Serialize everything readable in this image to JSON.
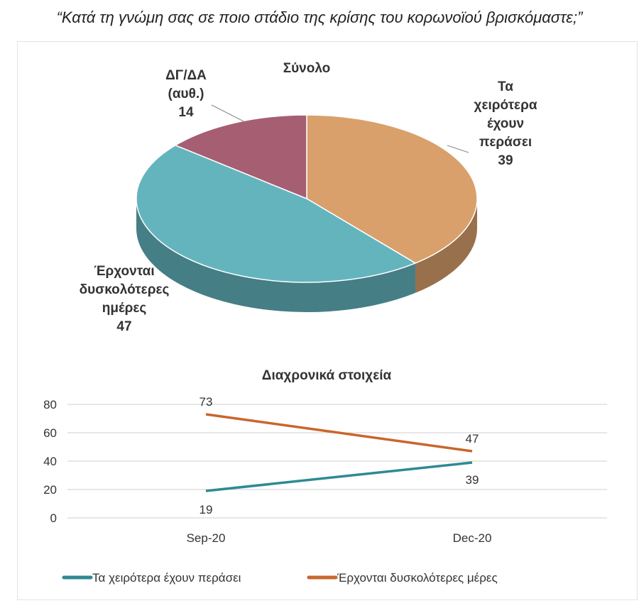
{
  "question": "“Κατά τη γνώμη σας σε ποιο στάδιο της κρίσης του κορωνοϊού βρισκόμαστε;”",
  "chart_data": [
    {
      "type": "pie",
      "title": "Σύνολο",
      "slices": [
        {
          "label_lines": [
            "Τα",
            "χειρότερα",
            "έχουν",
            "περάσει"
          ],
          "value": 39,
          "color": "#D9A06B"
        },
        {
          "label_lines": [
            "Έρχονται",
            "δυσκολότερες",
            "ημέρες"
          ],
          "value": 47,
          "color": "#64B4BE"
        },
        {
          "label_lines": [
            "ΔΓ/ΔΑ",
            "(αυθ.)"
          ],
          "value": 14,
          "color": "#A65E72"
        }
      ]
    },
    {
      "type": "line",
      "title": "Διαχρονικά στοιχεία",
      "categories": [
        "Sep-20",
        "Dec-20"
      ],
      "ylim": [
        0,
        80
      ],
      "yticks": [
        0,
        20,
        40,
        60,
        80
      ],
      "grid": true,
      "legend_position": "bottom",
      "series": [
        {
          "name": "Τα χειρότερα έχουν περάσει",
          "values": [
            19,
            39
          ],
          "color": "#2E8A93"
        },
        {
          "name": "Έρχονται δυσκολότερες μέρες",
          "values": [
            73,
            47
          ],
          "color": "#C8662C"
        }
      ]
    }
  ]
}
